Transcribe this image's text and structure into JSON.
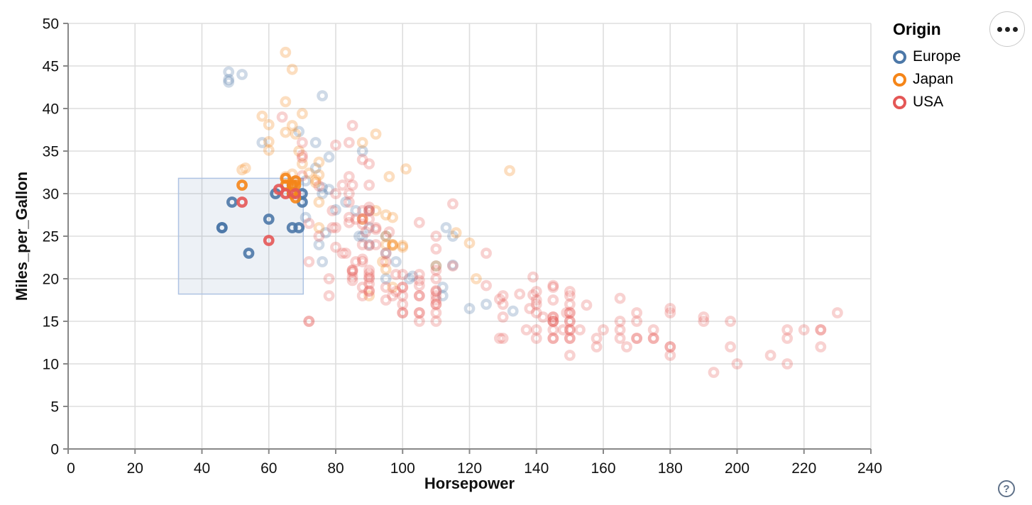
{
  "ui": {
    "menu_button": {
      "icon": "ellipsis"
    },
    "help_button": {
      "label": "?"
    }
  },
  "chart_data": {
    "type": "scatter",
    "title": "",
    "xlabel": "Horsepower",
    "ylabel": "Miles_per_Gallon",
    "xlim": [
      0,
      240
    ],
    "ylim": [
      0,
      50
    ],
    "x_ticks": [
      0,
      20,
      40,
      60,
      80,
      100,
      120,
      140,
      160,
      180,
      200,
      220,
      240
    ],
    "y_ticks": [
      0,
      5,
      10,
      15,
      20,
      25,
      30,
      35,
      40,
      45,
      50
    ],
    "grid": true,
    "legend": {
      "title": "Origin",
      "position": "top-right",
      "entries": [
        {
          "label": "Europe",
          "color": "#4c78a8"
        },
        {
          "label": "Japan",
          "color": "#f58518"
        },
        {
          "label": "USA",
          "color": "#e45756"
        }
      ]
    },
    "brush_selection": {
      "x": [
        33,
        70.3
      ],
      "y": [
        18.2,
        31.8
      ],
      "fill": "#4c78a8",
      "fill_opacity": 0.1,
      "stroke": "#aec3e3"
    },
    "point_style": {
      "shape": "open-circle",
      "selected_opacity": 0.9,
      "unselected_opacity": 0.27
    },
    "series": [
      {
        "name": "Europe",
        "color": "#4c78a8",
        "points": [
          [
            46,
            26
          ],
          [
            46,
            26
          ],
          [
            87,
            25
          ],
          [
            90,
            24
          ],
          [
            95,
            25
          ],
          [
            113,
            26
          ],
          [
            90,
            28
          ],
          [
            70,
            30
          ],
          [
            76,
            30
          ],
          [
            60,
            27
          ],
          [
            54,
            23
          ],
          [
            112,
            18
          ],
          [
            76,
            22
          ],
          [
            69,
            26
          ],
          [
            49,
            29
          ],
          [
            112,
            19
          ],
          [
            95,
            20
          ],
          [
            90,
            26
          ],
          [
            83,
            29
          ],
          [
            67,
            26
          ],
          [
            75,
            24
          ],
          [
            95,
            23
          ],
          [
            98,
            22
          ],
          [
            115,
            25
          ],
          [
            86,
            28
          ],
          [
            70,
            29
          ],
          [
            110,
            21.5
          ],
          [
            58,
            36
          ],
          [
            48,
            43.1
          ],
          [
            48,
            44.3
          ],
          [
            48,
            43.4
          ],
          [
            52,
            44
          ],
          [
            133,
            16.2
          ],
          [
            125,
            17
          ],
          [
            115,
            21.6
          ],
          [
            120,
            16.5
          ],
          [
            103,
            20.3
          ],
          [
            102,
            20
          ],
          [
            71,
            27.2
          ],
          [
            76,
            30.7
          ],
          [
            67,
            30
          ],
          [
            67,
            31
          ],
          [
            62,
            30
          ],
          [
            71,
            31.5
          ],
          [
            78,
            34.3
          ],
          [
            74,
            33
          ],
          [
            74,
            36
          ],
          [
            80,
            28.1
          ],
          [
            77,
            25.4
          ],
          [
            69,
            37.3
          ],
          [
            88,
            35
          ],
          [
            76,
            41.5
          ],
          [
            78,
            30.5
          ],
          [
            88,
            25
          ]
        ]
      },
      {
        "name": "Japan",
        "color": "#f58518",
        "points": [
          [
            95,
            24
          ],
          [
            88,
            27
          ],
          [
            88,
            27
          ],
          [
            95,
            25
          ],
          [
            65,
            31
          ],
          [
            65,
            32
          ],
          [
            69,
            35
          ],
          [
            97,
            19
          ],
          [
            92,
            28
          ],
          [
            97,
            24
          ],
          [
            90,
            18
          ],
          [
            94,
            22
          ],
          [
            122,
            20
          ],
          [
            67,
            31
          ],
          [
            75,
            29
          ],
          [
            53,
            33
          ],
          [
            75,
            26
          ],
          [
            52,
            32.8
          ],
          [
            68,
            31.5
          ],
          [
            97,
            27.2
          ],
          [
            95,
            21.1
          ],
          [
            97,
            23.9
          ],
          [
            110,
            21.5
          ],
          [
            68,
            29.5
          ],
          [
            65,
            31.8
          ],
          [
            95,
            27.5
          ],
          [
            65,
            37.2
          ],
          [
            60,
            38.1
          ],
          [
            92,
            37
          ],
          [
            75,
            32.2
          ],
          [
            65,
            40.8
          ],
          [
            74,
            31.3
          ],
          [
            72,
            32.4
          ],
          [
            58,
            39.1
          ],
          [
            60,
            35.1
          ],
          [
            65,
            46.6
          ],
          [
            132,
            32.7
          ],
          [
            67,
            44.6
          ],
          [
            67,
            32.3
          ],
          [
            67,
            30
          ],
          [
            116,
            25.4
          ],
          [
            120,
            24.2
          ],
          [
            68,
            37
          ],
          [
            68,
            31
          ],
          [
            88,
            36
          ],
          [
            96,
            32
          ],
          [
            100,
            23.9
          ],
          [
            74,
            31.6
          ],
          [
            75,
            33.7
          ],
          [
            67,
            38
          ],
          [
            100,
            23.7
          ],
          [
            52,
            31
          ],
          [
            60,
            36.1
          ],
          [
            70,
            33.5
          ],
          [
            97,
            24
          ],
          [
            70,
            39.4
          ],
          [
            101,
            32.9
          ]
        ]
      },
      {
        "name": "USA",
        "color": "#e45756",
        "points": [
          [
            130,
            18
          ],
          [
            165,
            15
          ],
          [
            150,
            18
          ],
          [
            150,
            16
          ],
          [
            140,
            17
          ],
          [
            198,
            15
          ],
          [
            220,
            14
          ],
          [
            215,
            14
          ],
          [
            225,
            14
          ],
          [
            190,
            15
          ],
          [
            170,
            15
          ],
          [
            160,
            14
          ],
          [
            150,
            15
          ],
          [
            225,
            14
          ],
          [
            95,
            22
          ],
          [
            97,
            18
          ],
          [
            85,
            21
          ],
          [
            90,
            21
          ],
          [
            215,
            10
          ],
          [
            200,
            10
          ],
          [
            210,
            11
          ],
          [
            193,
            9
          ],
          [
            90,
            28
          ],
          [
            100,
            19
          ],
          [
            105,
            16
          ],
          [
            100,
            17
          ],
          [
            88,
            19
          ],
          [
            100,
            18
          ],
          [
            165,
            14
          ],
          [
            175,
            14
          ],
          [
            153,
            14
          ],
          [
            150,
            14
          ],
          [
            180,
            12
          ],
          [
            170,
            13
          ],
          [
            175,
            13
          ],
          [
            110,
            18
          ],
          [
            72,
            22
          ],
          [
            86,
            22
          ],
          [
            165,
            13
          ],
          [
            150,
            17
          ],
          [
            198,
            12
          ],
          [
            215,
            13
          ],
          [
            225,
            12
          ],
          [
            140,
            13
          ],
          [
            150,
            13
          ],
          [
            140,
            14
          ],
          [
            150,
            14
          ],
          [
            145,
            15
          ],
          [
            137,
            14
          ],
          [
            150,
            11
          ],
          [
            158,
            13
          ],
          [
            175,
            13
          ],
          [
            145,
            13
          ],
          [
            105,
            18
          ],
          [
            100,
            16
          ],
          [
            88,
            18
          ],
          [
            95,
            23
          ],
          [
            158,
            12
          ],
          [
            167,
            12
          ],
          [
            170,
            13
          ],
          [
            180,
            12
          ],
          [
            145,
            15
          ],
          [
            150,
            15
          ],
          [
            230,
            16
          ],
          [
            180,
            11
          ],
          [
            75,
            25
          ],
          [
            100,
            16
          ],
          [
            110,
            16
          ],
          [
            140,
            16
          ],
          [
            80,
            26
          ],
          [
            105,
            15
          ],
          [
            85,
            21
          ],
          [
            95,
            19
          ],
          [
            105,
            18
          ],
          [
            72,
            15
          ],
          [
            72,
            15
          ],
          [
            170,
            16
          ],
          [
            145,
            15
          ],
          [
            150,
            16
          ],
          [
            148,
            14
          ],
          [
            110,
            17
          ],
          [
            105,
            16
          ],
          [
            110,
            15
          ],
          [
            145,
            14
          ],
          [
            110,
            21
          ],
          [
            110,
            20
          ],
          [
            129,
            13
          ],
          [
            78,
            20
          ],
          [
            83,
            23
          ],
          [
            90,
            20
          ],
          [
            52,
            29
          ],
          [
            79,
            26
          ],
          [
            72,
            26.5
          ],
          [
            180,
            16.5
          ],
          [
            145,
            13
          ],
          [
            130,
            13
          ],
          [
            150,
            13
          ],
          [
            80,
            30
          ],
          [
            96,
            25.5
          ],
          [
            78,
            18
          ],
          [
            110,
            18.5
          ],
          [
            95,
            17.5
          ],
          [
            145,
            17.5
          ],
          [
            110,
            17
          ],
          [
            145,
            15.5
          ],
          [
            130,
            15.5
          ],
          [
            110,
            17.5
          ],
          [
            105,
            20.5
          ],
          [
            100,
            19
          ],
          [
            98,
            18.5
          ],
          [
            180,
            16
          ],
          [
            145,
            15.5
          ],
          [
            190,
            15.5
          ],
          [
            149,
            16
          ],
          [
            63,
            30.5
          ],
          [
            90,
            18.5
          ],
          [
            89,
            25.5
          ],
          [
            165,
            17.7
          ],
          [
            85,
            20.2
          ],
          [
            98,
            20.5
          ],
          [
            100,
            20.5
          ],
          [
            90,
            19.4
          ],
          [
            90,
            18.6
          ],
          [
            75,
            30.9
          ],
          [
            68,
            30
          ],
          [
            139,
            18.1
          ],
          [
            140,
            17.5
          ],
          [
            145,
            19.2
          ],
          [
            85,
            20.8
          ],
          [
            140,
            18.5
          ],
          [
            139,
            20.2
          ],
          [
            105,
            19.2
          ],
          [
            145,
            19
          ],
          [
            155,
            16.9
          ],
          [
            142,
            15.5
          ],
          [
            125,
            19.2
          ],
          [
            150,
            18.5
          ],
          [
            90,
            20.6
          ],
          [
            85,
            19.8
          ],
          [
            88,
            22.3
          ],
          [
            90,
            20.2
          ],
          [
            110,
            18.6
          ],
          [
            130,
            17
          ],
          [
            129,
            17.6
          ],
          [
            138,
            16.5
          ],
          [
            135,
            18.2
          ],
          [
            125,
            23
          ],
          [
            105,
            19.8
          ],
          [
            70,
            34.2
          ],
          [
            70,
            34.5
          ],
          [
            90,
            28.4
          ],
          [
            115,
            28.8
          ],
          [
            80,
            23.7
          ],
          [
            115,
            21.5
          ],
          [
            88,
            26.4
          ],
          [
            70,
            32.1
          ],
          [
            80,
            35.7
          ],
          [
            90,
            28
          ],
          [
            84,
            27.2
          ],
          [
            84,
            26.6
          ],
          [
            92,
            25.8
          ],
          [
            110,
            23.5
          ],
          [
            84,
            30
          ],
          [
            88,
            24
          ],
          [
            82,
            23
          ],
          [
            105,
            26.6
          ],
          [
            90,
            23.9
          ],
          [
            90,
            33.5
          ],
          [
            64,
            39
          ],
          [
            88,
            28
          ],
          [
            88,
            27
          ],
          [
            88,
            34
          ],
          [
            85,
            31
          ],
          [
            84,
            29
          ],
          [
            90,
            31
          ],
          [
            92,
            24
          ],
          [
            90,
            27
          ],
          [
            86,
            27
          ],
          [
            92,
            26
          ],
          [
            88,
            22
          ],
          [
            110,
            25
          ],
          [
            85,
            38
          ],
          [
            84,
            36
          ],
          [
            70,
            36
          ],
          [
            84,
            32
          ],
          [
            79,
            28
          ],
          [
            82,
            31
          ],
          [
            60,
            24.5
          ],
          [
            65,
            30
          ]
        ]
      }
    ]
  }
}
